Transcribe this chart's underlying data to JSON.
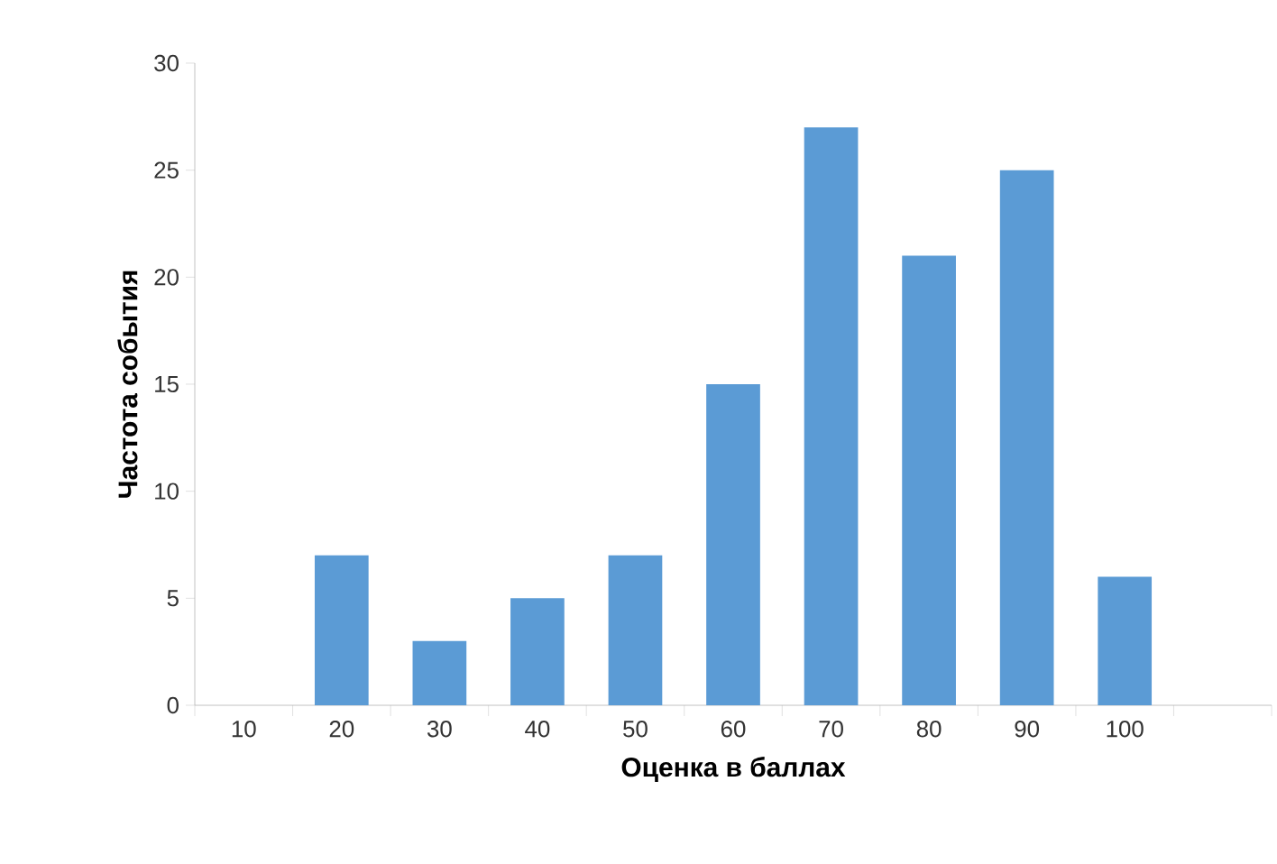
{
  "chart_data": {
    "type": "bar",
    "xlabel": "Оценка в баллах",
    "ylabel": "Частота события",
    "categories": [
      "10",
      "20",
      "30",
      "40",
      "50",
      "60",
      "70",
      "80",
      "90",
      "100",
      null
    ],
    "values": [
      0,
      7,
      3,
      5,
      7,
      15,
      27,
      21,
      25,
      6,
      null
    ],
    "color": "#5b9bd5",
    "ylim": [
      0,
      30
    ],
    "yticks": [
      0,
      5,
      10,
      15,
      20,
      25,
      30
    ]
  }
}
